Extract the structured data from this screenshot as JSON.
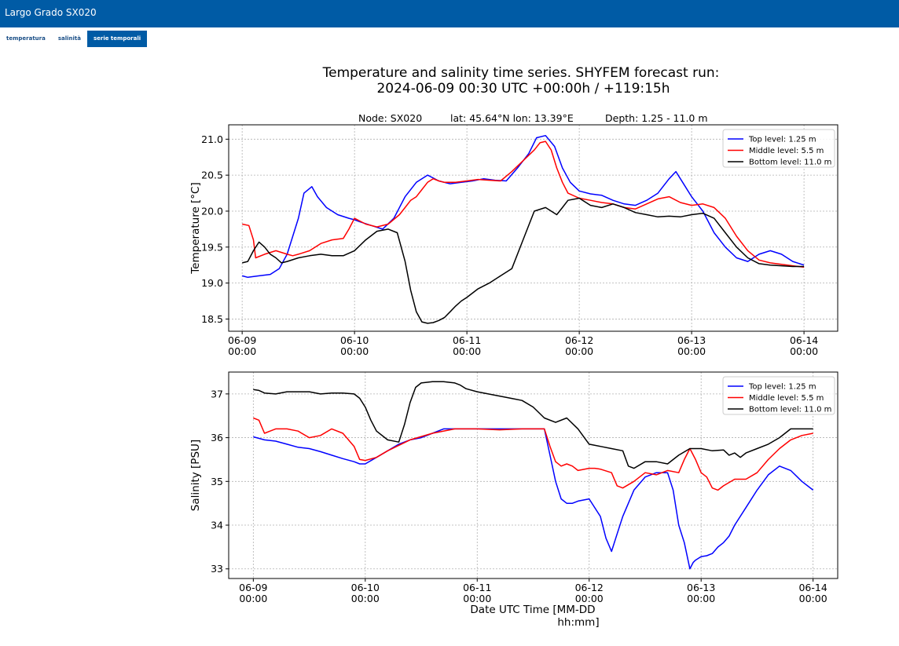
{
  "app": {
    "title": "Largo Grado SX020"
  },
  "tabs": [
    {
      "label": "temperatura",
      "active": false
    },
    {
      "label": "salinità",
      "active": false
    },
    {
      "label": "serie temporali",
      "active": true
    }
  ],
  "colors": {
    "header": "#005ba5",
    "top": "#0000ff",
    "middle": "#ff0000",
    "bottom": "#000000"
  },
  "figure": {
    "title_line1": "Temperature and salinity time series. SHYFEM forecast run:",
    "title_line2": "2024-06-09  00:30 UTC   +00:00h / +119:15h",
    "node": "Node: SX020",
    "latlon": "lat: 45.64°N  lon: 13.39°E",
    "depth": "Depth: 1.25 - 11.0 m",
    "xlabel_line1": "Date UTC Time [MM-DD",
    "xlabel_line2": "hh:mm]"
  },
  "chart_data": [
    {
      "type": "line",
      "ylabel": "Temperature [°C]",
      "xlim": [
        -0.12,
        5.3
      ],
      "ylim": [
        18.33,
        21.2
      ],
      "yticks": [
        18.5,
        19.0,
        19.5,
        20.0,
        20.5,
        21.0
      ],
      "ytick_labels": [
        "18.5",
        "19.0",
        "19.5",
        "20.0",
        "20.5",
        "21.0"
      ],
      "xticks": [
        0,
        1,
        2,
        3,
        4,
        5
      ],
      "xtick_labels": [
        [
          "06-09",
          "00:00"
        ],
        [
          "06-10",
          "00:00"
        ],
        [
          "06-11",
          "00:00"
        ],
        [
          "06-12",
          "00:00"
        ],
        [
          "06-13",
          "00:00"
        ],
        [
          "06-14",
          "00:00"
        ]
      ],
      "grid": true,
      "legend": "top-right",
      "series": [
        {
          "name": "Top level: 1.25 m",
          "color": "#0000ff",
          "x": [
            0,
            0.05,
            0.15,
            0.25,
            0.33,
            0.4,
            0.5,
            0.55,
            0.62,
            0.67,
            0.75,
            0.85,
            0.95,
            1.0,
            1.05,
            1.15,
            1.25,
            1.35,
            1.45,
            1.55,
            1.65,
            1.75,
            1.85,
            1.95,
            2.05,
            2.15,
            2.25,
            2.35,
            2.45,
            2.55,
            2.62,
            2.7,
            2.78,
            2.85,
            2.92,
            3.0,
            3.1,
            3.2,
            3.3,
            3.4,
            3.5,
            3.6,
            3.7,
            3.8,
            3.86,
            3.92,
            4.0,
            4.1,
            4.2,
            4.3,
            4.4,
            4.5,
            4.6,
            4.7,
            4.8,
            4.9,
            5.0
          ],
          "y": [
            19.1,
            19.08,
            19.1,
            19.12,
            19.2,
            19.4,
            19.9,
            20.25,
            20.34,
            20.2,
            20.05,
            19.95,
            19.9,
            19.88,
            19.85,
            19.8,
            19.75,
            19.9,
            20.2,
            20.4,
            20.5,
            20.42,
            20.38,
            20.4,
            20.42,
            20.45,
            20.43,
            20.42,
            20.6,
            20.8,
            21.02,
            21.05,
            20.9,
            20.6,
            20.4,
            20.28,
            20.24,
            20.22,
            20.15,
            20.1,
            20.08,
            20.15,
            20.25,
            20.45,
            20.55,
            20.4,
            20.2,
            20.0,
            19.7,
            19.5,
            19.35,
            19.3,
            19.4,
            19.45,
            19.4,
            19.3,
            19.25
          ]
        },
        {
          "name": "Middle level: 5.5 m",
          "color": "#ff0000",
          "x": [
            0,
            0.06,
            0.1,
            0.12,
            0.2,
            0.3,
            0.4,
            0.45,
            0.5,
            0.6,
            0.7,
            0.8,
            0.9,
            0.95,
            1.0,
            1.1,
            1.2,
            1.3,
            1.4,
            1.45,
            1.5,
            1.55,
            1.6,
            1.65,
            1.7,
            1.75,
            1.8,
            1.9,
            2.0,
            2.1,
            2.2,
            2.3,
            2.4,
            2.5,
            2.6,
            2.65,
            2.7,
            2.75,
            2.8,
            2.85,
            2.9,
            3.0,
            3.1,
            3.2,
            3.3,
            3.4,
            3.5,
            3.6,
            3.7,
            3.8,
            3.9,
            4.0,
            4.1,
            4.2,
            4.3,
            4.4,
            4.5,
            4.6,
            4.7,
            4.8,
            4.9,
            5.0
          ],
          "y": [
            19.82,
            19.8,
            19.6,
            19.35,
            19.4,
            19.45,
            19.4,
            19.38,
            19.4,
            19.45,
            19.55,
            19.6,
            19.62,
            19.75,
            19.9,
            19.82,
            19.78,
            19.82,
            19.95,
            20.05,
            20.15,
            20.2,
            20.3,
            20.4,
            20.45,
            20.42,
            20.4,
            20.4,
            20.42,
            20.44,
            20.43,
            20.42,
            20.55,
            20.7,
            20.85,
            20.95,
            20.97,
            20.85,
            20.6,
            20.4,
            20.25,
            20.18,
            20.15,
            20.12,
            20.1,
            20.05,
            20.03,
            20.1,
            20.17,
            20.2,
            20.12,
            20.08,
            20.1,
            20.05,
            19.9,
            19.65,
            19.45,
            19.32,
            19.28,
            19.26,
            19.24,
            19.22
          ]
        },
        {
          "name": "Bottom level: 11.0 m",
          "color": "#000000",
          "x": [
            0,
            0.05,
            0.1,
            0.15,
            0.2,
            0.25,
            0.3,
            0.35,
            0.4,
            0.5,
            0.6,
            0.7,
            0.8,
            0.9,
            1.0,
            1.1,
            1.2,
            1.3,
            1.38,
            1.45,
            1.5,
            1.55,
            1.6,
            1.65,
            1.7,
            1.75,
            1.8,
            1.85,
            1.9,
            1.95,
            2.0,
            2.1,
            2.2,
            2.3,
            2.4,
            2.5,
            2.6,
            2.7,
            2.8,
            2.85,
            2.9,
            3.0,
            3.1,
            3.2,
            3.3,
            3.4,
            3.5,
            3.6,
            3.7,
            3.8,
            3.9,
            4.0,
            4.1,
            4.2,
            4.3,
            4.4,
            4.5,
            4.6,
            4.7,
            4.8,
            4.9,
            5.0
          ],
          "y": [
            19.28,
            19.3,
            19.45,
            19.57,
            19.5,
            19.4,
            19.35,
            19.28,
            19.3,
            19.35,
            19.38,
            19.4,
            19.38,
            19.38,
            19.45,
            19.6,
            19.72,
            19.75,
            19.7,
            19.3,
            18.9,
            18.6,
            18.46,
            18.44,
            18.45,
            18.48,
            18.52,
            18.6,
            18.68,
            18.75,
            18.8,
            18.92,
            19.0,
            19.1,
            19.2,
            19.6,
            20.0,
            20.05,
            19.95,
            20.05,
            20.15,
            20.18,
            20.08,
            20.05,
            20.1,
            20.05,
            19.98,
            19.95,
            19.92,
            19.93,
            19.92,
            19.95,
            19.97,
            19.9,
            19.7,
            19.5,
            19.35,
            19.27,
            19.25,
            19.24,
            19.23,
            19.23
          ]
        }
      ]
    },
    {
      "type": "line",
      "ylabel": "Salinity [PSU]",
      "xlim": [
        -0.22,
        5.22
      ],
      "ylim": [
        32.78,
        37.5
      ],
      "yticks": [
        33,
        34,
        35,
        36,
        37
      ],
      "ytick_labels": [
        "33",
        "34",
        "35",
        "36",
        "37"
      ],
      "xticks": [
        0,
        1,
        2,
        3,
        4,
        5
      ],
      "xtick_labels": [
        [
          "06-09",
          "00:00"
        ],
        [
          "06-10",
          "00:00"
        ],
        [
          "06-11",
          "00:00"
        ],
        [
          "06-12",
          "00:00"
        ],
        [
          "06-13",
          "00:00"
        ],
        [
          "06-14",
          "00:00"
        ]
      ],
      "grid": true,
      "legend": "top-right",
      "series": [
        {
          "name": "Top level: 1.25 m",
          "color": "#0000ff",
          "x": [
            0,
            0.1,
            0.2,
            0.3,
            0.4,
            0.5,
            0.6,
            0.7,
            0.8,
            0.9,
            0.95,
            1.0,
            1.1,
            1.2,
            1.3,
            1.4,
            1.5,
            1.6,
            1.7,
            1.8,
            1.9,
            2.0,
            2.2,
            2.4,
            2.6,
            2.65,
            2.7,
            2.75,
            2.8,
            2.85,
            2.9,
            3.0,
            3.1,
            3.15,
            3.2,
            3.25,
            3.3,
            3.35,
            3.4,
            3.5,
            3.6,
            3.7,
            3.75,
            3.8,
            3.85,
            3.9,
            3.93,
            3.95,
            4.0,
            4.05,
            4.1,
            4.15,
            4.2,
            4.25,
            4.3,
            4.4,
            4.5,
            4.6,
            4.7,
            4.8,
            4.9,
            5.0
          ],
          "y": [
            36.02,
            35.95,
            35.92,
            35.85,
            35.78,
            35.75,
            35.68,
            35.6,
            35.52,
            35.45,
            35.4,
            35.4,
            35.55,
            35.7,
            35.85,
            35.95,
            36.0,
            36.1,
            36.2,
            36.2,
            36.2,
            36.2,
            36.2,
            36.2,
            36.2,
            35.6,
            35.0,
            34.6,
            34.5,
            34.5,
            34.55,
            34.6,
            34.2,
            33.7,
            33.4,
            33.8,
            34.2,
            34.5,
            34.8,
            35.1,
            35.2,
            35.2,
            34.8,
            34.0,
            33.6,
            33.0,
            33.15,
            33.2,
            33.28,
            33.3,
            33.35,
            33.5,
            33.6,
            33.75,
            34.0,
            34.4,
            34.8,
            35.15,
            35.35,
            35.25,
            35.0,
            34.8
          ]
        },
        {
          "name": "Middle level: 5.5 m",
          "color": "#ff0000",
          "x": [
            0,
            0.05,
            0.1,
            0.15,
            0.2,
            0.3,
            0.4,
            0.5,
            0.6,
            0.7,
            0.8,
            0.9,
            0.95,
            1.0,
            1.1,
            1.2,
            1.4,
            1.6,
            1.8,
            2.0,
            2.2,
            2.4,
            2.6,
            2.65,
            2.7,
            2.75,
            2.8,
            2.85,
            2.9,
            3.0,
            3.05,
            3.1,
            3.2,
            3.25,
            3.3,
            3.4,
            3.5,
            3.6,
            3.7,
            3.8,
            3.85,
            3.9,
            3.95,
            4.0,
            4.05,
            4.1,
            4.15,
            4.2,
            4.3,
            4.4,
            4.5,
            4.6,
            4.7,
            4.8,
            4.9,
            5.0
          ],
          "y": [
            36.45,
            36.4,
            36.1,
            36.15,
            36.2,
            36.2,
            36.15,
            36.0,
            36.05,
            36.2,
            36.1,
            35.8,
            35.5,
            35.48,
            35.55,
            35.7,
            35.95,
            36.1,
            36.2,
            36.2,
            36.18,
            36.2,
            36.2,
            35.8,
            35.45,
            35.35,
            35.4,
            35.35,
            35.25,
            35.3,
            35.3,
            35.28,
            35.2,
            34.9,
            34.85,
            35.0,
            35.2,
            35.15,
            35.25,
            35.2,
            35.5,
            35.75,
            35.5,
            35.2,
            35.1,
            34.85,
            34.8,
            34.9,
            35.05,
            35.05,
            35.2,
            35.5,
            35.75,
            35.95,
            36.05,
            36.1
          ]
        },
        {
          "name": "Bottom level: 11.0 m",
          "color": "#000000",
          "x": [
            0,
            0.05,
            0.1,
            0.2,
            0.3,
            0.4,
            0.5,
            0.6,
            0.7,
            0.8,
            0.9,
            0.95,
            1.0,
            1.05,
            1.1,
            1.2,
            1.3,
            1.35,
            1.4,
            1.45,
            1.5,
            1.6,
            1.7,
            1.8,
            1.85,
            1.9,
            2.0,
            2.1,
            2.2,
            2.3,
            2.4,
            2.5,
            2.6,
            2.7,
            2.8,
            2.9,
            3.0,
            3.1,
            3.2,
            3.3,
            3.35,
            3.4,
            3.5,
            3.6,
            3.7,
            3.8,
            3.9,
            4.0,
            4.1,
            4.2,
            4.25,
            4.3,
            4.35,
            4.4,
            4.5,
            4.6,
            4.7,
            4.8,
            4.9,
            5.0
          ],
          "y": [
            37.1,
            37.08,
            37.02,
            37.0,
            37.05,
            37.05,
            37.05,
            37.0,
            37.02,
            37.02,
            37.0,
            36.9,
            36.7,
            36.4,
            36.15,
            35.95,
            35.9,
            36.3,
            36.8,
            37.15,
            37.25,
            37.28,
            37.28,
            37.25,
            37.2,
            37.12,
            37.05,
            37.0,
            36.95,
            36.9,
            36.85,
            36.7,
            36.45,
            36.35,
            36.45,
            36.2,
            35.85,
            35.8,
            35.75,
            35.7,
            35.35,
            35.3,
            35.45,
            35.45,
            35.4,
            35.6,
            35.75,
            35.75,
            35.7,
            35.72,
            35.6,
            35.65,
            35.55,
            35.65,
            35.75,
            35.85,
            36.0,
            36.2,
            36.2,
            36.2
          ]
        }
      ]
    }
  ]
}
